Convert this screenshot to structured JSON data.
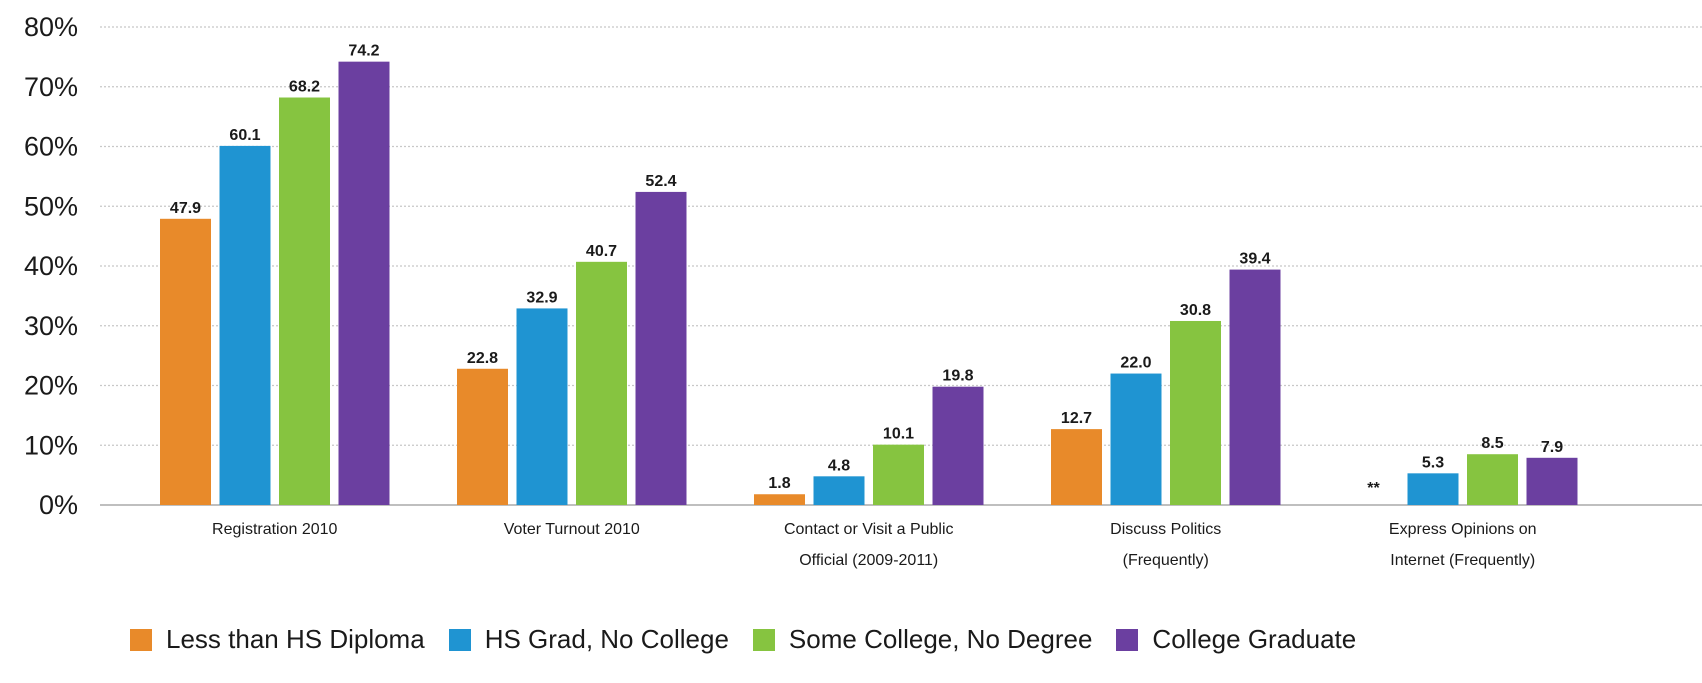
{
  "chart_data": {
    "type": "bar",
    "categories": [
      [
        "Registration 2010"
      ],
      [
        "Voter Turnout 2010"
      ],
      [
        "Contact or Visit a Public",
        "Official (2009-2011)"
      ],
      [
        "Discuss Politics",
        "(Frequently)"
      ],
      [
        "Express Opinions on",
        "Internet (Frequently)"
      ]
    ],
    "series": [
      {
        "name": "Less than HS Diploma",
        "color": "#e88a2a",
        "values": [
          47.9,
          22.8,
          1.8,
          12.7,
          null
        ],
        "labels": [
          "47.9",
          "22.8",
          "1.8",
          "12.7",
          "**"
        ]
      },
      {
        "name": "HS Grad, No College",
        "color": "#1f94d2",
        "values": [
          60.1,
          32.9,
          4.8,
          22.0,
          5.3
        ],
        "labels": [
          "60.1",
          "32.9",
          "4.8",
          "22.0",
          "5.3"
        ]
      },
      {
        "name": "Some College, No Degree",
        "color": "#86c440",
        "values": [
          68.2,
          40.7,
          10.1,
          30.8,
          8.5
        ],
        "labels": [
          "68.2",
          "40.7",
          "10.1",
          "30.8",
          "8.5"
        ]
      },
      {
        "name": "College Graduate",
        "color": "#6b3fa0",
        "values": [
          74.2,
          52.4,
          19.8,
          39.4,
          7.9
        ],
        "labels": [
          "74.2",
          "52.4",
          "19.8",
          "39.4",
          "7.9"
        ]
      }
    ],
    "yticks": [
      "0%",
      "10%",
      "20%",
      "30%",
      "40%",
      "50%",
      "60%",
      "70%",
      "80%"
    ],
    "ylim": [
      0,
      80
    ],
    "grid": true,
    "legend_position": "bottom",
    "title": "",
    "xlabel": "",
    "ylabel": ""
  }
}
